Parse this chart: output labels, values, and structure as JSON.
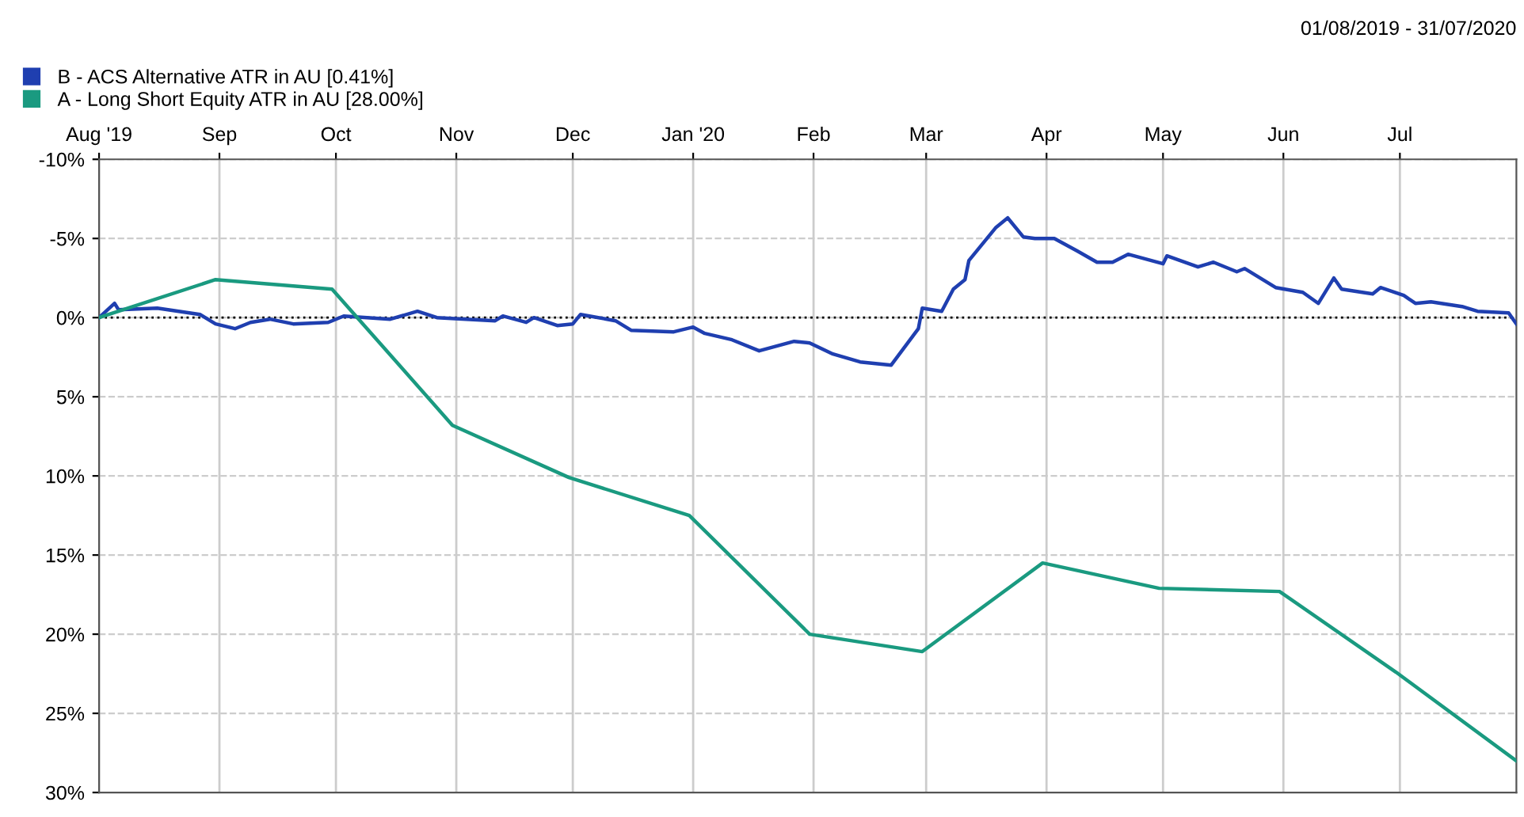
{
  "chart_data": {
    "type": "line",
    "subtitle": "01/08/2019 - 31/07/2020",
    "series": [
      {
        "name": "B - ACS Alternative ATR in AU [0.41%]",
        "color": "#1f3fb0",
        "x": [
          "2019-08-01",
          "2019-08-05",
          "2019-08-06",
          "2019-08-16",
          "2019-08-27",
          "2019-08-31",
          "2019-09-05",
          "2019-09-09",
          "2019-09-14",
          "2019-09-20",
          "2019-09-29",
          "2019-10-03",
          "2019-10-15",
          "2019-10-22",
          "2019-10-27",
          "2019-11-11",
          "2019-11-13",
          "2019-11-19",
          "2019-11-21",
          "2019-11-27",
          "2019-12-01",
          "2019-12-03",
          "2019-12-12",
          "2019-12-16",
          "2019-12-27",
          "2020-01-01",
          "2020-01-04",
          "2020-01-11",
          "2020-01-18",
          "2020-01-27",
          "2020-01-31",
          "2020-02-06",
          "2020-02-13",
          "2020-02-21",
          "2020-02-28",
          "2020-02-29",
          "2020-03-05",
          "2020-03-08",
          "2020-03-11",
          "2020-03-12",
          "2020-03-15",
          "2020-03-19",
          "2020-03-22",
          "2020-03-26",
          "2020-03-29",
          "2020-04-03",
          "2020-04-09",
          "2020-04-14",
          "2020-04-18",
          "2020-04-22",
          "2020-05-01",
          "2020-05-02",
          "2020-05-10",
          "2020-05-14",
          "2020-05-20",
          "2020-05-22",
          "2020-05-30",
          "2020-06-06",
          "2020-06-10",
          "2020-06-14",
          "2020-06-16",
          "2020-06-24",
          "2020-06-26",
          "2020-07-02",
          "2020-07-05",
          "2020-07-09",
          "2020-07-17",
          "2020-07-21",
          "2020-07-29",
          "2020-07-31"
        ],
        "values": [
          0,
          -0.9,
          -0.5,
          -0.6,
          -0.2,
          0.4,
          0.7,
          0.3,
          0.1,
          0.4,
          0.3,
          -0.1,
          0.1,
          -0.4,
          0,
          0.2,
          -0.1,
          0.3,
          0,
          0.5,
          0.4,
          -0.2,
          0.2,
          0.8,
          0.9,
          0.6,
          1.0,
          1.4,
          2.1,
          1.5,
          1.6,
          2.3,
          2.8,
          3.0,
          0.7,
          -0.6,
          -0.4,
          -1.8,
          -2.4,
          -3.6,
          -4.5,
          -5.7,
          -6.3,
          -5.1,
          -5.0,
          -5.0,
          -4.2,
          -3.5,
          -3.5,
          -4.0,
          -3.4,
          -3.9,
          -3.2,
          -3.5,
          -2.9,
          -3.1,
          -1.9,
          -1.6,
          -0.9,
          -2.5,
          -1.8,
          -1.5,
          -1.9,
          -1.4,
          -0.9,
          -1.0,
          -0.7,
          -0.4,
          -0.3,
          0.4
        ]
      },
      {
        "name": "A - Long Short Equity ATR in AU [28.00%]",
        "color": "#1a9a80",
        "x": [
          "2019-08-01",
          "2019-08-31",
          "2019-09-30",
          "2019-10-31",
          "2019-11-30",
          "2019-12-31",
          "2020-01-31",
          "2020-02-29",
          "2020-03-31",
          "2020-04-30",
          "2020-05-31",
          "2020-06-30",
          "2020-07-31"
        ],
        "values": [
          0,
          -2.4,
          -1.8,
          6.8,
          10.1,
          12.5,
          20.0,
          21.1,
          15.5,
          17.1,
          17.3,
          22.4,
          28.0
        ]
      }
    ],
    "xlim": [
      "2019-08-01",
      "2020-07-31"
    ],
    "xticks": [
      {
        "value": "2019-08-01",
        "label": "Aug '19"
      },
      {
        "value": "2019-09-01",
        "label": "Sep"
      },
      {
        "value": "2019-10-01",
        "label": "Oct"
      },
      {
        "value": "2019-11-01",
        "label": "Nov"
      },
      {
        "value": "2019-12-01",
        "label": "Dec"
      },
      {
        "value": "2020-01-01",
        "label": "Jan '20"
      },
      {
        "value": "2020-02-01",
        "label": "Feb"
      },
      {
        "value": "2020-03-01",
        "label": "Mar"
      },
      {
        "value": "2020-04-01",
        "label": "Apr"
      },
      {
        "value": "2020-05-01",
        "label": "May"
      },
      {
        "value": "2020-06-01",
        "label": "Jun"
      },
      {
        "value": "2020-07-01",
        "label": "Jul"
      }
    ],
    "ylim": [
      30,
      -10
    ],
    "yticks": [
      {
        "value": -10,
        "label": "-10%"
      },
      {
        "value": -5,
        "label": "-5%"
      },
      {
        "value": 0,
        "label": "0%"
      },
      {
        "value": 5,
        "label": "5%"
      },
      {
        "value": 10,
        "label": "10%"
      },
      {
        "value": 15,
        "label": "15%"
      },
      {
        "value": 20,
        "label": "20%"
      },
      {
        "value": 25,
        "label": "25%"
      },
      {
        "value": 30,
        "label": "30%"
      }
    ],
    "ref_lines": [
      {
        "axis": "y",
        "value": 0,
        "color": "#000000",
        "line_style": "dotted"
      }
    ],
    "grid": true,
    "legend": "top left",
    "marker": "none",
    "line_style": "solid"
  }
}
